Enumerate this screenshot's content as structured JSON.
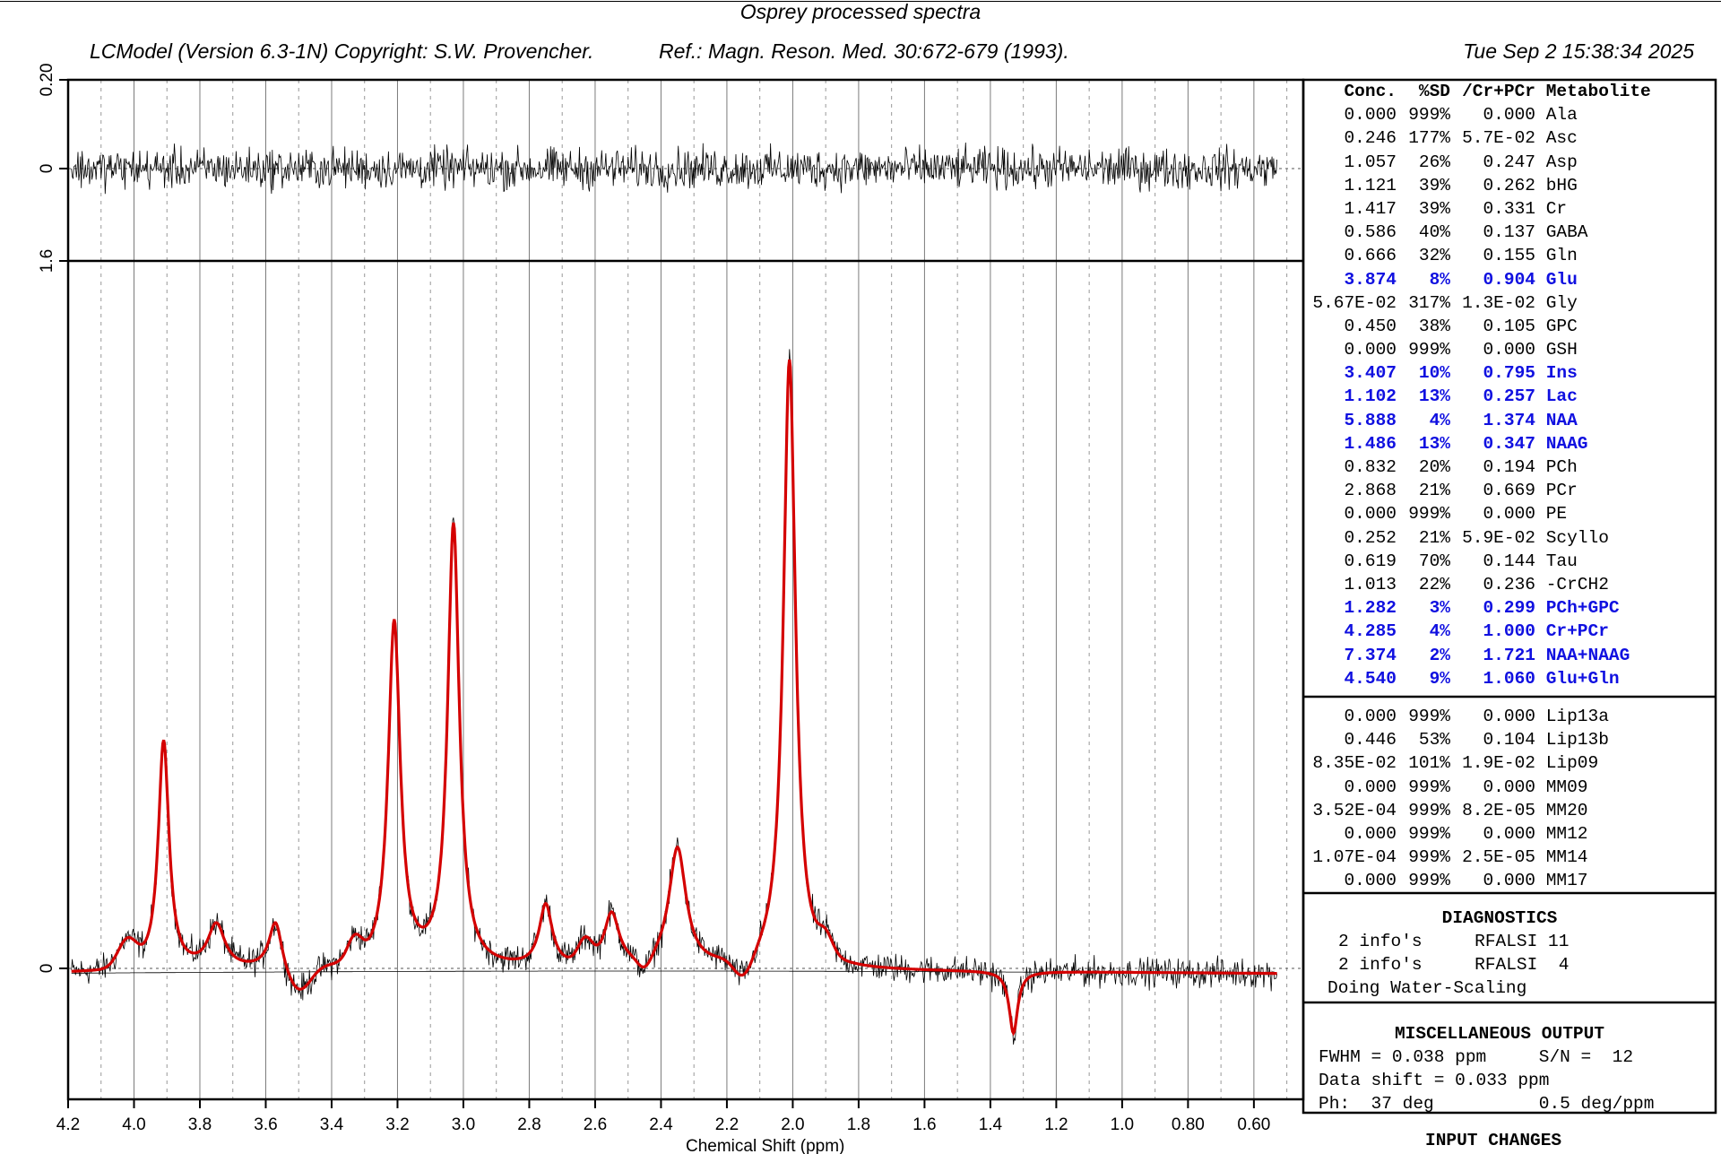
{
  "page": {
    "title": "Osprey processed spectra",
    "copyright": "LCModel (Version 6.3-1N) Copyright: S.W. Provencher.",
    "reference": "Ref.: Magn. Reson. Med. 30:672-679 (1993).",
    "date": "Tue Sep  2 15:38:34 2025"
  },
  "colors": {
    "fit": "#d40000",
    "data": "#000000",
    "highlight": "#1010e0",
    "grid": "#555555"
  },
  "table": {
    "headers": [
      "Conc.",
      "%SD",
      "/Cr+PCr",
      "Metabolite"
    ],
    "rows": [
      {
        "conc": "0.000",
        "sd": "999%",
        "ratio": "0.000",
        "name": "Ala",
        "hl": false
      },
      {
        "conc": "0.246",
        "sd": "177%",
        "ratio": "5.7E-02",
        "name": "Asc",
        "hl": false
      },
      {
        "conc": "1.057",
        "sd": "26%",
        "ratio": "0.247",
        "name": "Asp",
        "hl": false
      },
      {
        "conc": "1.121",
        "sd": "39%",
        "ratio": "0.262",
        "name": "bHG",
        "hl": false
      },
      {
        "conc": "1.417",
        "sd": "39%",
        "ratio": "0.331",
        "name": "Cr",
        "hl": false
      },
      {
        "conc": "0.586",
        "sd": "40%",
        "ratio": "0.137",
        "name": "GABA",
        "hl": false
      },
      {
        "conc": "0.666",
        "sd": "32%",
        "ratio": "0.155",
        "name": "Gln",
        "hl": false
      },
      {
        "conc": "3.874",
        "sd": "8%",
        "ratio": "0.904",
        "name": "Glu",
        "hl": true
      },
      {
        "conc": "5.67E-02",
        "sd": "317%",
        "ratio": "1.3E-02",
        "name": "Gly",
        "hl": false
      },
      {
        "conc": "0.450",
        "sd": "38%",
        "ratio": "0.105",
        "name": "GPC",
        "hl": false
      },
      {
        "conc": "0.000",
        "sd": "999%",
        "ratio": "0.000",
        "name": "GSH",
        "hl": false
      },
      {
        "conc": "3.407",
        "sd": "10%",
        "ratio": "0.795",
        "name": "Ins",
        "hl": true
      },
      {
        "conc": "1.102",
        "sd": "13%",
        "ratio": "0.257",
        "name": "Lac",
        "hl": true
      },
      {
        "conc": "5.888",
        "sd": "4%",
        "ratio": "1.374",
        "name": "NAA",
        "hl": true
      },
      {
        "conc": "1.486",
        "sd": "13%",
        "ratio": "0.347",
        "name": "NAAG",
        "hl": true
      },
      {
        "conc": "0.832",
        "sd": "20%",
        "ratio": "0.194",
        "name": "PCh",
        "hl": false
      },
      {
        "conc": "2.868",
        "sd": "21%",
        "ratio": "0.669",
        "name": "PCr",
        "hl": false
      },
      {
        "conc": "0.000",
        "sd": "999%",
        "ratio": "0.000",
        "name": "PE",
        "hl": false
      },
      {
        "conc": "0.252",
        "sd": "21%",
        "ratio": "5.9E-02",
        "name": "Scyllo",
        "hl": false
      },
      {
        "conc": "0.619",
        "sd": "70%",
        "ratio": "0.144",
        "name": "Tau",
        "hl": false
      },
      {
        "conc": "1.013",
        "sd": "22%",
        "ratio": "0.236",
        "name": "-CrCH2",
        "hl": false
      },
      {
        "conc": "1.282",
        "sd": "3%",
        "ratio": "0.299",
        "name": "PCh+GPC",
        "hl": true
      },
      {
        "conc": "4.285",
        "sd": "4%",
        "ratio": "1.000",
        "name": "Cr+PCr",
        "hl": true
      },
      {
        "conc": "7.374",
        "sd": "2%",
        "ratio": "1.721",
        "name": "NAA+NAAG",
        "hl": true
      },
      {
        "conc": "4.540",
        "sd": "9%",
        "ratio": "1.060",
        "name": "Glu+Gln",
        "hl": true
      }
    ]
  },
  "lipids": [
    {
      "conc": "0.000",
      "sd": "999%",
      "ratio": "0.000",
      "name": "Lip13a"
    },
    {
      "conc": "0.446",
      "sd": "53%",
      "ratio": "0.104",
      "name": "Lip13b"
    },
    {
      "conc": "8.35E-02",
      "sd": "101%",
      "ratio": "1.9E-02",
      "name": "Lip09"
    },
    {
      "conc": "0.000",
      "sd": "999%",
      "ratio": "0.000",
      "name": "MM09"
    },
    {
      "conc": "3.52E-04",
      "sd": "999%",
      "ratio": "8.2E-05",
      "name": "MM20"
    },
    {
      "conc": "0.000",
      "sd": "999%",
      "ratio": "0.000",
      "name": "MM12"
    },
    {
      "conc": "1.07E-04",
      "sd": "999%",
      "ratio": "2.5E-05",
      "name": "MM14"
    },
    {
      "conc": "0.000",
      "sd": "999%",
      "ratio": "0.000",
      "name": "MM17"
    }
  ],
  "diagnostics": {
    "title": "DIAGNOSTICS",
    "lines": [
      "2 info's     RFALSI 11",
      "2 info's     RFALSI  4",
      "Doing Water-Scaling"
    ]
  },
  "misc": {
    "title": "MISCELLANEOUS OUTPUT",
    "lines": [
      "FWHM = 0.038 ppm     S/N =  12",
      "Data shift = 0.033 ppm",
      "Ph:  37 deg          0.5 deg/ppm"
    ]
  },
  "input_changes": "INPUT CHANGES",
  "chart_data": {
    "type": "line",
    "xlabel": "Chemical Shift (ppm)",
    "xlim": [
      4.2,
      0.45
    ],
    "x_ticks": [
      "4.2",
      "4.0",
      "3.8",
      "3.6",
      "3.4",
      "3.2",
      "3.0",
      "2.8",
      "2.6",
      "2.4",
      "2.2",
      "2.0",
      "1.8",
      "1.6",
      "1.4",
      "1.2",
      "1.0",
      "0.80",
      "0.60"
    ],
    "x_tick_values": [
      4.2,
      4.0,
      3.8,
      3.6,
      3.4,
      3.2,
      3.0,
      2.8,
      2.6,
      2.4,
      2.2,
      2.0,
      1.8,
      1.6,
      1.4,
      1.2,
      1.0,
      0.8,
      0.6
    ],
    "residual_panel": {
      "ylim": [
        -0.2,
        0.2
      ],
      "y_ticks": [
        "0.20",
        "0"
      ]
    },
    "spectrum_panel": {
      "ylim": [
        -0.28,
        1.6
      ],
      "y_ticks": [
        "1.6",
        "0"
      ],
      "fit_peaks_ppm": [
        3.91,
        3.75,
        3.57,
        3.21,
        3.03,
        2.75,
        2.55,
        2.35,
        2.01,
        1.33
      ],
      "fit_peak_heights": [
        0.52,
        0.1,
        0.11,
        0.78,
        1.0,
        0.14,
        0.12,
        0.27,
        1.38,
        -0.14
      ]
    }
  }
}
